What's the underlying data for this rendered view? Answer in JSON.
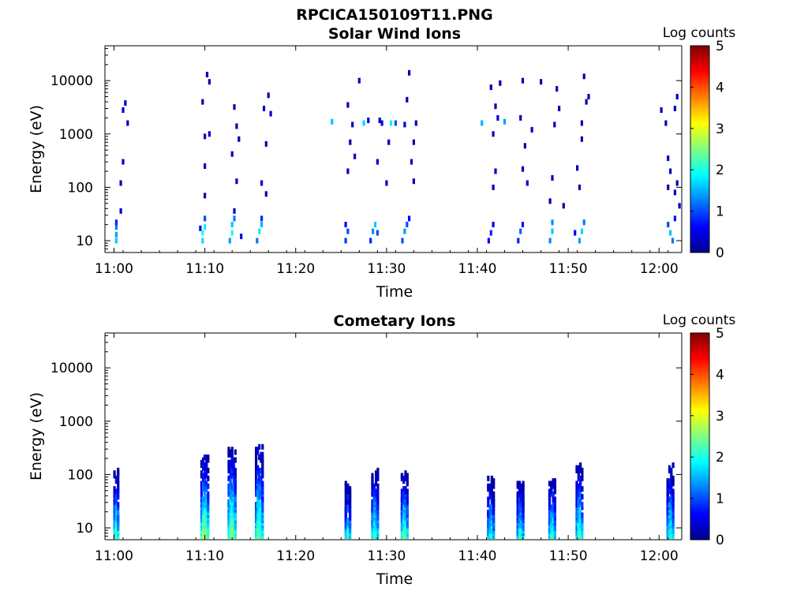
{
  "figure_title": "RPCICA150109T11.PNG",
  "colormap": [
    "#00008f",
    "#0000ff",
    "#0080ff",
    "#00ffff",
    "#80ff80",
    "#ffff00",
    "#ff8000",
    "#ff0000",
    "#800000"
  ],
  "chart_data": [
    {
      "type": "heatmap",
      "title": "Solar Wind Ions",
      "xlabel": "Time",
      "ylabel": "Energy (eV)",
      "yscale": "log",
      "xlim": [
        "10:59:00",
        "12:02:30"
      ],
      "ylim": [
        6,
        45000
      ],
      "xticks": [
        "11:00",
        "11:10",
        "11:20",
        "11:30",
        "11:40",
        "11:50",
        "12:00"
      ],
      "yticks": [
        {
          "value": 10,
          "label": "10"
        },
        {
          "value": 100,
          "label": "100"
        },
        {
          "value": 1000,
          "label": "1000"
        },
        {
          "value": 10000,
          "label": "10000"
        }
      ],
      "colorbar": {
        "label": "Log counts",
        "min": 0,
        "max": 5,
        "ticks": [
          "0",
          "1",
          "2",
          "3",
          "4",
          "5"
        ]
      },
      "bursts_minutes_after_11": [
        0,
        9.8,
        12.8,
        15.8,
        25.6,
        28.5,
        32,
        41.6,
        44.8,
        48.3,
        51.2,
        61.4
      ],
      "cells": [
        {
          "t": "11:00:15",
          "e": 10,
          "v": 1.6
        },
        {
          "t": "11:00:15",
          "e": 13,
          "v": 1.4
        },
        {
          "t": "11:00:15",
          "e": 18,
          "v": 1.2
        },
        {
          "t": "11:00:15",
          "e": 22,
          "v": 0.8
        },
        {
          "t": "11:00:45",
          "e": 36,
          "v": 0.3
        },
        {
          "t": "11:00:45",
          "e": 120,
          "v": 0.2
        },
        {
          "t": "11:01:00",
          "e": 300,
          "v": 0.3
        },
        {
          "t": "11:01:00",
          "e": 2800,
          "v": 0.3
        },
        {
          "t": "11:01:15",
          "e": 3800,
          "v": 0.2
        },
        {
          "t": "11:01:30",
          "e": 1600,
          "v": 0.3
        },
        {
          "t": "11:09:30",
          "e": 17,
          "v": 0.5
        },
        {
          "t": "11:09:45",
          "e": 10,
          "v": 1.7
        },
        {
          "t": "11:09:45",
          "e": 14,
          "v": 2.0
        },
        {
          "t": "11:10:00",
          "e": 18,
          "v": 1.8
        },
        {
          "t": "11:10:00",
          "e": 26,
          "v": 1.0
        },
        {
          "t": "11:10:00",
          "e": 70,
          "v": 0.2
        },
        {
          "t": "11:10:00",
          "e": 900,
          "v": 0.3
        },
        {
          "t": "11:10:15",
          "e": 13000,
          "v": 0.2
        },
        {
          "t": "11:09:45",
          "e": 4000,
          "v": 0.2
        },
        {
          "t": "11:10:30",
          "e": 9500,
          "v": 0.2
        },
        {
          "t": "11:10:30",
          "e": 1000,
          "v": 0.2
        },
        {
          "t": "11:10:00",
          "e": 250,
          "v": 0.3
        },
        {
          "t": "11:12:45",
          "e": 10,
          "v": 1.4
        },
        {
          "t": "11:13:00",
          "e": 14,
          "v": 2.0
        },
        {
          "t": "11:13:00",
          "e": 20,
          "v": 1.6
        },
        {
          "t": "11:13:15",
          "e": 26,
          "v": 1.2
        },
        {
          "t": "11:13:15",
          "e": 36,
          "v": 0.3
        },
        {
          "t": "11:13:00",
          "e": 420,
          "v": 0.3
        },
        {
          "t": "11:13:15",
          "e": 3200,
          "v": 0.2
        },
        {
          "t": "11:13:30",
          "e": 1400,
          "v": 0.2
        },
        {
          "t": "11:13:45",
          "e": 800,
          "v": 0.2
        },
        {
          "t": "11:13:30",
          "e": 130,
          "v": 0.3
        },
        {
          "t": "11:14:00",
          "e": 12,
          "v": 0.5
        },
        {
          "t": "11:15:45",
          "e": 10,
          "v": 1.2
        },
        {
          "t": "11:16:00",
          "e": 15,
          "v": 1.8
        },
        {
          "t": "11:16:15",
          "e": 20,
          "v": 1.5
        },
        {
          "t": "11:16:15",
          "e": 26,
          "v": 0.8
        },
        {
          "t": "11:16:30",
          "e": 3000,
          "v": 0.3
        },
        {
          "t": "11:16:15",
          "e": 120,
          "v": 0.3
        },
        {
          "t": "11:16:45",
          "e": 650,
          "v": 0.2
        },
        {
          "t": "11:17:00",
          "e": 5300,
          "v": 0.2
        },
        {
          "t": "11:17:15",
          "e": 2400,
          "v": 0.3
        },
        {
          "t": "11:16:45",
          "e": 75,
          "v": 0.2
        },
        {
          "t": "11:25:30",
          "e": 10,
          "v": 0.9
        },
        {
          "t": "11:25:45",
          "e": 15,
          "v": 1.0
        },
        {
          "t": "11:25:30",
          "e": 20,
          "v": 0.6
        },
        {
          "t": "11:24:00",
          "e": 1700,
          "v": 1.6
        },
        {
          "t": "11:25:45",
          "e": 3500,
          "v": 0.3
        },
        {
          "t": "11:26:00",
          "e": 700,
          "v": 0.2
        },
        {
          "t": "11:26:15",
          "e": 1500,
          "v": 0.2
        },
        {
          "t": "11:25:45",
          "e": 200,
          "v": 0.3
        },
        {
          "t": "11:27:00",
          "e": 10000,
          "v": 0.2
        },
        {
          "t": "11:27:30",
          "e": 1600,
          "v": 1.7
        },
        {
          "t": "11:28:00",
          "e": 1800,
          "v": 0.4
        },
        {
          "t": "11:26:30",
          "e": 380,
          "v": 0.3
        },
        {
          "t": "11:28:15",
          "e": 10,
          "v": 0.8
        },
        {
          "t": "11:28:30",
          "e": 15,
          "v": 1.3
        },
        {
          "t": "11:28:45",
          "e": 20,
          "v": 1.6
        },
        {
          "t": "11:29:00",
          "e": 14,
          "v": 1.0
        },
        {
          "t": "11:29:00",
          "e": 300,
          "v": 0.3
        },
        {
          "t": "11:29:30",
          "e": 1600,
          "v": 0.5
        },
        {
          "t": "11:30:00",
          "e": 120,
          "v": 0.2
        },
        {
          "t": "11:30:15",
          "e": 700,
          "v": 0.3
        },
        {
          "t": "11:29:15",
          "e": 1800,
          "v": 0.2
        },
        {
          "t": "11:30:30",
          "e": 1600,
          "v": 1.8
        },
        {
          "t": "11:31:00",
          "e": 1600,
          "v": 1.0
        },
        {
          "t": "11:31:45",
          "e": 10,
          "v": 1.0
        },
        {
          "t": "11:32:00",
          "e": 15,
          "v": 1.4
        },
        {
          "t": "11:32:15",
          "e": 20,
          "v": 1.0
        },
        {
          "t": "11:32:30",
          "e": 26,
          "v": 0.6
        },
        {
          "t": "11:32:30",
          "e": 14000,
          "v": 0.2
        },
        {
          "t": "11:32:15",
          "e": 4400,
          "v": 0.2
        },
        {
          "t": "11:32:00",
          "e": 1500,
          "v": 0.3
        },
        {
          "t": "11:33:00",
          "e": 700,
          "v": 0.2
        },
        {
          "t": "11:32:45",
          "e": 300,
          "v": 0.3
        },
        {
          "t": "11:33:00",
          "e": 130,
          "v": 0.2
        },
        {
          "t": "11:33:15",
          "e": 1600,
          "v": 0.3
        },
        {
          "t": "11:40:30",
          "e": 1600,
          "v": 1.5
        },
        {
          "t": "11:41:15",
          "e": 10,
          "v": 0.6
        },
        {
          "t": "11:41:30",
          "e": 14,
          "v": 0.8
        },
        {
          "t": "11:41:45",
          "e": 20,
          "v": 0.5
        },
        {
          "t": "11:41:45",
          "e": 1000,
          "v": 0.2
        },
        {
          "t": "11:41:30",
          "e": 7500,
          "v": 0.2
        },
        {
          "t": "11:42:00",
          "e": 3300,
          "v": 0.2
        },
        {
          "t": "11:42:15",
          "e": 2000,
          "v": 0.3
        },
        {
          "t": "11:42:00",
          "e": 200,
          "v": 0.3
        },
        {
          "t": "11:41:45",
          "e": 100,
          "v": 0.2
        },
        {
          "t": "11:43:00",
          "e": 1700,
          "v": 1.4
        },
        {
          "t": "11:42:30",
          "e": 9000,
          "v": 0.2
        },
        {
          "t": "11:44:30",
          "e": 10,
          "v": 0.8
        },
        {
          "t": "11:44:45",
          "e": 15,
          "v": 1.1
        },
        {
          "t": "11:45:00",
          "e": 20,
          "v": 0.7
        },
        {
          "t": "11:44:45",
          "e": 2000,
          "v": 0.3
        },
        {
          "t": "11:45:00",
          "e": 10000,
          "v": 0.2
        },
        {
          "t": "11:45:15",
          "e": 600,
          "v": 0.2
        },
        {
          "t": "11:45:30",
          "e": 120,
          "v": 0.3
        },
        {
          "t": "11:45:00",
          "e": 220,
          "v": 0.2
        },
        {
          "t": "11:46:00",
          "e": 1200,
          "v": 0.3
        },
        {
          "t": "11:47:00",
          "e": 9500,
          "v": 0.2
        },
        {
          "t": "11:48:00",
          "e": 10,
          "v": 1.3
        },
        {
          "t": "11:48:15",
          "e": 15,
          "v": 1.6
        },
        {
          "t": "11:48:15",
          "e": 22,
          "v": 1.3
        },
        {
          "t": "11:48:30",
          "e": 1500,
          "v": 0.3
        },
        {
          "t": "11:48:15",
          "e": 150,
          "v": 0.3
        },
        {
          "t": "11:48:45",
          "e": 7000,
          "v": 0.2
        },
        {
          "t": "11:48:00",
          "e": 55,
          "v": 0.2
        },
        {
          "t": "11:49:00",
          "e": 3000,
          "v": 0.2
        },
        {
          "t": "11:49:30",
          "e": 45,
          "v": 0.2
        },
        {
          "t": "11:50:45",
          "e": 14,
          "v": 0.6
        },
        {
          "t": "11:51:15",
          "e": 10,
          "v": 1.4
        },
        {
          "t": "11:51:30",
          "e": 15,
          "v": 1.7
        },
        {
          "t": "11:51:45",
          "e": 22,
          "v": 1.2
        },
        {
          "t": "11:51:45",
          "e": 12000,
          "v": 0.2
        },
        {
          "t": "11:52:00",
          "e": 4000,
          "v": 0.2
        },
        {
          "t": "11:51:30",
          "e": 1600,
          "v": 0.3
        },
        {
          "t": "11:51:30",
          "e": 800,
          "v": 0.2
        },
        {
          "t": "11:51:00",
          "e": 230,
          "v": 0.3
        },
        {
          "t": "11:51:15",
          "e": 100,
          "v": 0.2
        },
        {
          "t": "11:52:15",
          "e": 5000,
          "v": 0.2
        },
        {
          "t": "12:00:15",
          "e": 2800,
          "v": 0.2
        },
        {
          "t": "12:00:45",
          "e": 1600,
          "v": 0.3
        },
        {
          "t": "12:01:00",
          "e": 350,
          "v": 0.3
        },
        {
          "t": "12:01:15",
          "e": 200,
          "v": 0.3
        },
        {
          "t": "12:01:00",
          "e": 20,
          "v": 1.0
        },
        {
          "t": "12:01:15",
          "e": 14,
          "v": 1.6
        },
        {
          "t": "12:01:30",
          "e": 10,
          "v": 1.2
        },
        {
          "t": "12:01:45",
          "e": 26,
          "v": 0.7
        },
        {
          "t": "12:01:45",
          "e": 3000,
          "v": 0.2
        },
        {
          "t": "12:02:00",
          "e": 5000,
          "v": 0.3
        },
        {
          "t": "12:01:45",
          "e": 80,
          "v": 0.2
        },
        {
          "t": "12:02:00",
          "e": 120,
          "v": 0.2
        },
        {
          "t": "12:02:15",
          "e": 45,
          "v": 0.3
        },
        {
          "t": "12:01:00",
          "e": 100,
          "v": 0.2
        }
      ]
    },
    {
      "type": "heatmap",
      "title": "Cometary Ions",
      "xlabel": "Time",
      "ylabel": "Energy (eV)",
      "yscale": "log",
      "xlim": [
        "10:59:00",
        "12:02:30"
      ],
      "ylim": [
        6,
        45000
      ],
      "xticks": [
        "11:00",
        "11:10",
        "11:20",
        "11:30",
        "11:40",
        "11:50",
        "12:00"
      ],
      "yticks": [
        {
          "value": 10,
          "label": "10"
        },
        {
          "value": 100,
          "label": "100"
        },
        {
          "value": 1000,
          "label": "1000"
        },
        {
          "value": 10000,
          "label": "10000"
        }
      ],
      "colorbar": {
        "label": "Log counts",
        "min": 0,
        "max": 5,
        "ticks": [
          "0",
          "1",
          "2",
          "3",
          "4",
          "5"
        ]
      },
      "bursts_minutes_after_11": [
        0,
        9.8,
        12.8,
        15.8,
        25.6,
        28.5,
        32,
        41.6,
        44.8,
        48.3,
        51.2,
        61.4
      ],
      "bursts": [
        {
          "center": "11:00:15",
          "width_min": 0.6,
          "peak": 2.6,
          "top_e": 140
        },
        {
          "center": "11:10:00",
          "width_min": 0.9,
          "peak": 2.9,
          "top_e": 230
        },
        {
          "center": "11:13:00",
          "width_min": 0.9,
          "peak": 2.8,
          "top_e": 300
        },
        {
          "center": "11:16:00",
          "width_min": 0.9,
          "peak": 2.6,
          "top_e": 330
        },
        {
          "center": "11:25:45",
          "width_min": 0.7,
          "peak": 2.3,
          "top_e": 70
        },
        {
          "center": "11:28:45",
          "width_min": 0.8,
          "peak": 2.4,
          "top_e": 130
        },
        {
          "center": "11:32:00",
          "width_min": 0.8,
          "peak": 2.6,
          "top_e": 110
        },
        {
          "center": "11:41:30",
          "width_min": 0.8,
          "peak": 2.2,
          "top_e": 85
        },
        {
          "center": "11:44:45",
          "width_min": 0.8,
          "peak": 2.3,
          "top_e": 75
        },
        {
          "center": "11:48:15",
          "width_min": 0.8,
          "peak": 2.4,
          "top_e": 80
        },
        {
          "center": "11:51:15",
          "width_min": 0.8,
          "peak": 2.4,
          "top_e": 160
        },
        {
          "center": "12:01:15",
          "width_min": 0.8,
          "peak": 2.3,
          "top_e": 150
        }
      ]
    }
  ]
}
